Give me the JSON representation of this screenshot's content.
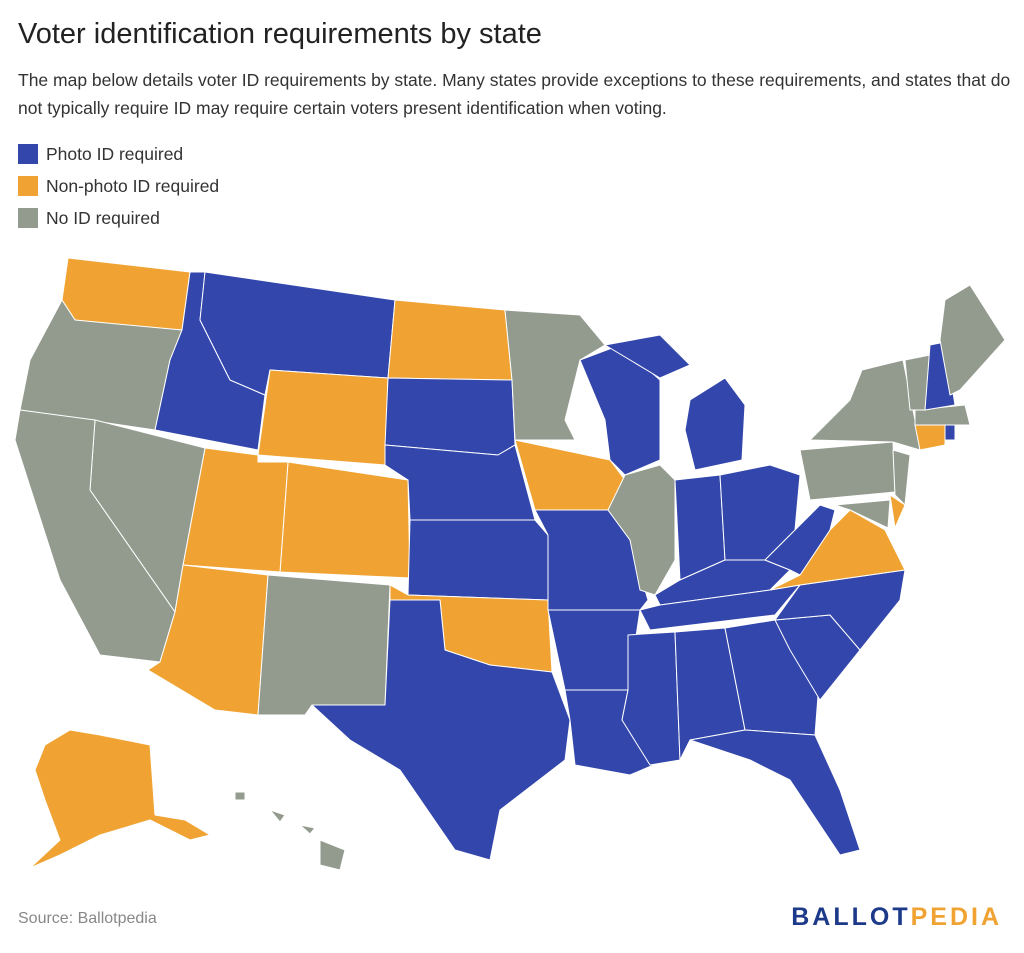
{
  "header": {
    "title": "Voter identification requirements by state",
    "subtitle": "The map below details voter ID requirements by state. Many states provide exceptions to these requirements, and states that do not typically require ID may require certain voters present identification when voting."
  },
  "legend": [
    {
      "label": "Photo ID required",
      "color": "#3346ab"
    },
    {
      "label": "Non-photo ID required",
      "color": "#f0a332"
    },
    {
      "label": "No ID required",
      "color": "#939b8f"
    }
  ],
  "footer": {
    "source": "Source: Ballotpedia",
    "logo": [
      "BALLOT",
      "PEDIA"
    ]
  }
}
